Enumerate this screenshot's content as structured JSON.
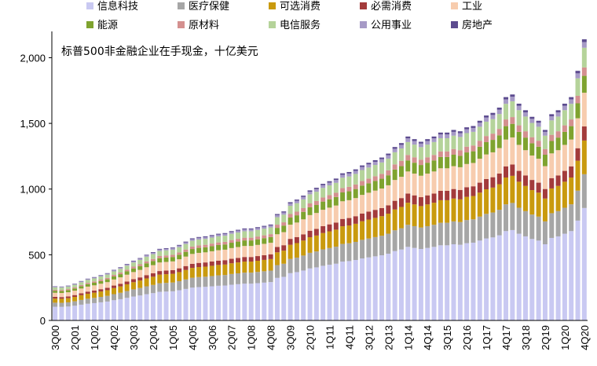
{
  "chart_data": {
    "type": "bar",
    "stacked": true,
    "annotation": "标普500非金融企业在手现金，十亿美元",
    "title": "",
    "xlabel": "",
    "ylabel": "",
    "ylim": [
      0,
      2200
    ],
    "yticks": [
      "0",
      "500",
      "1,000",
      "1,500",
      "2,000"
    ],
    "legend_position": "top",
    "grid": false,
    "categories": [
      "3Q00",
      "4Q00",
      "1Q01",
      "2Q01",
      "3Q01",
      "4Q01",
      "1Q02",
      "2Q02",
      "3Q02",
      "4Q02",
      "1Q03",
      "2Q03",
      "3Q03",
      "4Q03",
      "1Q04",
      "2Q04",
      "3Q04",
      "4Q04",
      "1Q05",
      "2Q05",
      "3Q05",
      "4Q05",
      "1Q06",
      "2Q06",
      "3Q06",
      "4Q06",
      "1Q07",
      "2Q07",
      "3Q07",
      "4Q07",
      "1Q08",
      "2Q08",
      "3Q08",
      "4Q08",
      "1Q09",
      "2Q09",
      "3Q09",
      "4Q09",
      "1Q10",
      "2Q10",
      "3Q10",
      "4Q10",
      "1Q11",
      "2Q11",
      "3Q11",
      "4Q11",
      "1Q12",
      "2Q12",
      "3Q12",
      "4Q12",
      "1Q13",
      "2Q13",
      "3Q13",
      "4Q13",
      "1Q14",
      "2Q14",
      "3Q14",
      "4Q14",
      "1Q15",
      "2Q15",
      "3Q15",
      "4Q15",
      "1Q16",
      "2Q16",
      "3Q16",
      "4Q16",
      "1Q17",
      "2Q17",
      "3Q17",
      "4Q17",
      "1Q18",
      "2Q18",
      "3Q18",
      "4Q18",
      "1Q19",
      "2Q19",
      "3Q19",
      "4Q19",
      "1Q20",
      "2Q20",
      "3Q20",
      "4Q20"
    ],
    "xtick_labels": [
      "3Q00",
      "2Q01",
      "1Q02",
      "4Q02",
      "3Q03",
      "2Q04",
      "1Q05",
      "4Q05",
      "3Q06",
      "2Q07",
      "1Q08",
      "4Q08",
      "3Q09",
      "2Q10",
      "1Q11",
      "4Q11",
      "3Q12",
      "2Q13",
      "1Q14",
      "4Q14",
      "3Q15",
      "2Q16",
      "1Q17",
      "4Q17",
      "3Q18",
      "2Q19",
      "1Q20",
      "4Q20"
    ],
    "totals": [
      260,
      258,
      265,
      280,
      300,
      318,
      330,
      345,
      360,
      385,
      405,
      430,
      455,
      475,
      500,
      520,
      545,
      550,
      555,
      575,
      600,
      625,
      635,
      640,
      650,
      660,
      665,
      680,
      690,
      700,
      700,
      710,
      720,
      730,
      810,
      830,
      900,
      920,
      950,
      990,
      1010,
      1040,
      1060,
      1080,
      1120,
      1130,
      1150,
      1180,
      1200,
      1220,
      1240,
      1270,
      1320,
      1350,
      1400,
      1380,
      1360,
      1380,
      1400,
      1430,
      1430,
      1450,
      1440,
      1470,
      1480,
      1520,
      1560,
      1580,
      1620,
      1700,
      1720,
      1650,
      1600,
      1550,
      1520,
      1450,
      1570,
      1600,
      1650,
      1700,
      1900,
      2140
    ],
    "series": [
      {
        "name": "信息科技",
        "color": "#C9C9F2",
        "share": 0.4
      },
      {
        "name": "医疗保健",
        "color": "#A6A6A6",
        "share": 0.12
      },
      {
        "name": "可选消费",
        "color": "#C99A0E",
        "share": 0.12
      },
      {
        "name": "必需消费",
        "color": "#A33B3B",
        "share": 0.05
      },
      {
        "name": "工业",
        "color": "#F7CCAE",
        "share": 0.12
      },
      {
        "name": "能源",
        "color": "#7FA32F",
        "share": 0.06
      },
      {
        "name": "原材料",
        "color": "#D4908F",
        "share": 0.03
      },
      {
        "name": "电信服务",
        "color": "#B5D39A",
        "share": 0.07
      },
      {
        "name": "公用事业",
        "color": "#A69AC6",
        "share": 0.02
      },
      {
        "name": "房地产",
        "color": "#5C4B8F",
        "share": 0.01
      }
    ]
  }
}
